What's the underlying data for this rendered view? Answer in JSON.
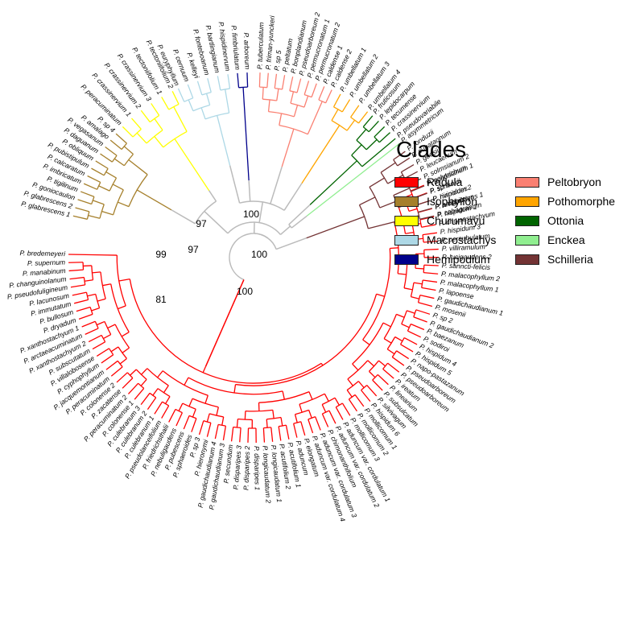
{
  "legend": {
    "title": "Clades",
    "items": [
      {
        "name": "Radula",
        "color": "#ff0000"
      },
      {
        "name": "Isophyllon",
        "color": "#a6802c"
      },
      {
        "name": "Churumayu",
        "color": "#ffff00"
      },
      {
        "name": "Macrostachys",
        "color": "#add8e6"
      },
      {
        "name": "Hemipodium",
        "color": "#00008b"
      },
      {
        "name": "Peltobryon",
        "color": "#fa8072"
      },
      {
        "name": "Pothomorphe",
        "color": "#ffa500"
      },
      {
        "name": "Ottonia",
        "color": "#006400"
      },
      {
        "name": "Enckea",
        "color": "#90ee90"
      },
      {
        "name": "Schilleria",
        "color": "#733334"
      }
    ]
  },
  "bootstrap": [
    "97",
    "97",
    "99",
    "81",
    "100",
    "100",
    "100"
  ],
  "tree": {
    "backbone_color": "#bbbbbb",
    "clades": [
      {
        "name": "Radula",
        "color": "#ff0000",
        "tips": [
          "P. polytrichum",
          "P. sp 1",
          "P. hispidum 2",
          "P. lucigaudens 1",
          "P. hispidum 1",
          "P. chrysostachyum",
          "P. hispidum 3",
          "P. persubulatum",
          "P. villiramulum",
          "P. lucigaudens 2",
          "P. sanncti-felicis",
          "P. malacophyllum 2",
          "P. malacophyllum 1",
          "P. lapoense",
          "P. gaudichaudianum 1",
          "P. mosenii",
          "P. sp 2",
          "P. gaudichaudianum 2",
          "P. baezanum",
          "P. sodiroi",
          "P. hispidum 4",
          "P. hispidum 5",
          "P. napo-pastazanum",
          "P. pseudoarboreum",
          "P. pseudoarboreum",
          "P. ireatum",
          "P. linearium",
          "P. subsulcatum",
          "P. silvivagum",
          "P. hispidum 6",
          "P. mollicomum 1",
          "P. mollicomum 2",
          "P. mollicomum 3",
          "P. aduncum var. cordulatum 1",
          "P. aduncum var. cordulatum 2",
          "P. chimonanthifolium",
          "P. aduncum var. cordulatum 3",
          "P. aduncum var. cordulatum 4",
          "P. elongatum",
          "P. aduncum",
          "P. acutifolium 1",
          "P. acutifolium 2",
          "P. longicaudatum 1",
          "P. longicaudatum 2",
          "P. disparipes 1",
          "P. disparipes 2",
          "P. disparipes 3",
          "P. secundum",
          "P. gaudichaudianum 3",
          "P. gaudichaudianum 4",
          "P. hieronymi",
          "P. sp 3",
          "P. sphaeroides",
          "P. pubescens",
          "P. nebuligaudens",
          "P. friedrichsthalii",
          "P. pseudolanceifolium",
          "P. culebranum 1",
          "P. culebranum 2",
          "P. culebranum 3",
          "P. colonense 1",
          "P. peracuminatum 2",
          "P. zacatense",
          "P. colonense 2",
          "P. peracuminatum",
          "P. jacquemontianum",
          "P. cyphophyllum",
          "P. villalobosense",
          "P. subscutatum",
          "P. xanthostachyum 2",
          "P. arctaeacuminatum",
          "P. xanthostachyum 1",
          "P. dryadum",
          "P. bullosum",
          "P. immutatum",
          "P. lacunosum",
          "P. pseudofuligineum",
          "P. changuinolanum",
          "P. manabinum",
          "P. supernum",
          "P. bredemeyeri"
        ]
      },
      {
        "name": "Isophyllon",
        "color": "#a6802c",
        "tips": [
          "P. glabrescens 1",
          "P. glabrescens 2",
          "P. goniocaulon",
          "P. tigilinum",
          "P. imbricatum",
          "P. calcaratum",
          "P. pubistipulum",
          "P. obliquum",
          "P. daguanum",
          "P. vegasanum",
          "P. amalago",
          "P. sp 4"
        ]
      },
      {
        "name": "Churumayu",
        "color": "#ffff00",
        "tips": [
          "P. peracuminatum",
          "P. crassinervium 1",
          "P. crassinervium 2",
          "P. crassinervium 3",
          "P. tectoniifolium 1",
          "P. tectoniifolium 2"
        ]
      },
      {
        "name": "Macrostachys",
        "color": "#add8e6",
        "tips": [
          "P. euryphyllum",
          "P. cernuum",
          "P. kelleyi",
          "P. fonteboanum",
          "P. bartlingianum",
          "P. hispidinervum"
        ]
      },
      {
        "name": "Hemipodium",
        "color": "#00008b",
        "tips": [
          "P. fimbriulatum",
          "P. arboreum"
        ]
      },
      {
        "name": "Peltobryon",
        "color": "#fa8072",
        "tips": [
          "P. tuberculatum",
          "P. friman-yunckeri",
          "P. sp 5",
          "P. peltatum",
          "P. bonplandianum",
          "P. pseudoarboreum 2",
          "P. permucronatum 1",
          "P. permucronatum 2",
          "P. caldense 1",
          "P. caldense 2"
        ]
      },
      {
        "name": "Pothomorphe",
        "color": "#ffa500",
        "tips": [
          "P. umbellatum 1",
          "P. umbellatum 2",
          "P. umbellatum 3",
          "P. umbellatum 4"
        ]
      },
      {
        "name": "Ottonia",
        "color": "#006400",
        "tips": [
          "P. fruticosum",
          "P. lepidocarpum",
          "P. tecumense",
          "P. crassinervium",
          "P. pseudovariabile"
        ]
      },
      {
        "name": "Enckea",
        "color": "#90ee90",
        "tips": [
          "P. asymmetricum"
        ]
      },
      {
        "name": "Schilleria",
        "color": "#733334",
        "tips": [
          "P. fonduzii",
          "P. cubataonum",
          "P. goesii",
          "P. leucaenum",
          "P. solmsianum 2",
          "P. solmsianum 1",
          "P. schenkii",
          "P. rivinoides",
          "P. amphioxys",
          "P. cabagranum"
        ]
      }
    ]
  }
}
